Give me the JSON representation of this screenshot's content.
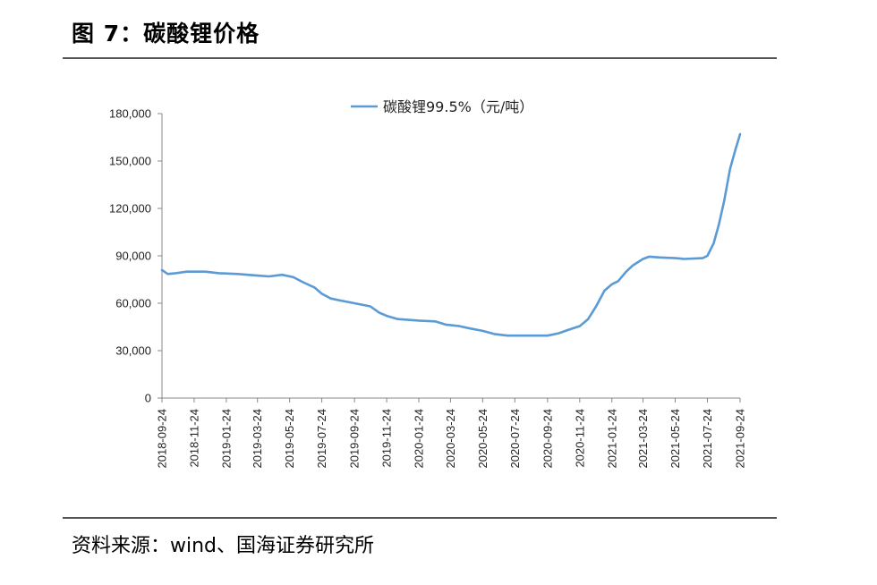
{
  "figure": {
    "title": "图 7：碳酸锂价格",
    "source": "资料来源：wind、国海证券研究所"
  },
  "colors": {
    "line": "#5b9bd5",
    "axis": "#888888",
    "rule": "#555555"
  },
  "chart_data": {
    "type": "line",
    "title": "",
    "xlabel": "",
    "ylabel": "",
    "ylim": [
      0,
      180000
    ],
    "xlim": [
      "2018-09-24",
      "2021-09-24"
    ],
    "yticks": [
      "0",
      "30,000",
      "60,000",
      "90,000",
      "120,000",
      "150,000",
      "180,000"
    ],
    "xticks": [
      "2018-09-24",
      "2018-11-24",
      "2019-01-24",
      "2019-03-24",
      "2019-05-24",
      "2019-07-24",
      "2019-09-24",
      "2019-11-24",
      "2020-01-24",
      "2020-03-24",
      "2020-05-24",
      "2020-07-24",
      "2020-09-24",
      "2020-11-24",
      "2021-01-24",
      "2021-03-24",
      "2021-05-24",
      "2021-07-24",
      "2021-09-24"
    ],
    "grid": false,
    "legend": "top-center",
    "series": [
      {
        "name": "碳酸锂99.5%（元/吨）",
        "points": [
          [
            "2018-09-24",
            81000
          ],
          [
            "2018-10-05",
            78500
          ],
          [
            "2018-10-20",
            79000
          ],
          [
            "2018-11-10",
            80000
          ],
          [
            "2018-12-15",
            80000
          ],
          [
            "2019-01-10",
            79000
          ],
          [
            "2019-02-15",
            78500
          ],
          [
            "2019-03-24",
            77500
          ],
          [
            "2019-04-15",
            77000
          ],
          [
            "2019-05-10",
            78000
          ],
          [
            "2019-05-31",
            76500
          ],
          [
            "2019-06-20",
            73000
          ],
          [
            "2019-07-10",
            70000
          ],
          [
            "2019-07-24",
            66000
          ],
          [
            "2019-08-10",
            63000
          ],
          [
            "2019-09-01",
            61500
          ],
          [
            "2019-09-24",
            60000
          ],
          [
            "2019-10-24",
            58000
          ],
          [
            "2019-11-10",
            54000
          ],
          [
            "2019-11-24",
            52000
          ],
          [
            "2019-12-15",
            50000
          ],
          [
            "2020-01-24",
            49000
          ],
          [
            "2020-02-24",
            48500
          ],
          [
            "2020-03-15",
            46500
          ],
          [
            "2020-04-10",
            45500
          ],
          [
            "2020-05-01",
            44000
          ],
          [
            "2020-05-24",
            42500
          ],
          [
            "2020-06-15",
            40500
          ],
          [
            "2020-07-10",
            39500
          ],
          [
            "2020-08-24",
            39500
          ],
          [
            "2020-09-24",
            39500
          ],
          [
            "2020-10-15",
            41000
          ],
          [
            "2020-11-01",
            43000
          ],
          [
            "2020-11-24",
            45500
          ],
          [
            "2020-12-10",
            50000
          ],
          [
            "2020-12-25",
            58000
          ],
          [
            "2021-01-10",
            68000
          ],
          [
            "2021-01-24",
            72000
          ],
          [
            "2021-02-05",
            74000
          ],
          [
            "2021-02-20",
            80000
          ],
          [
            "2021-03-05",
            84000
          ],
          [
            "2021-03-24",
            88000
          ],
          [
            "2021-04-05",
            89500
          ],
          [
            "2021-04-24",
            89000
          ],
          [
            "2021-05-24",
            88500
          ],
          [
            "2021-06-10",
            88000
          ],
          [
            "2021-07-15",
            88500
          ],
          [
            "2021-07-24",
            90000
          ],
          [
            "2021-08-05",
            98000
          ],
          [
            "2021-08-15",
            110000
          ],
          [
            "2021-08-25",
            125000
          ],
          [
            "2021-09-05",
            145000
          ],
          [
            "2021-09-15",
            157000
          ],
          [
            "2021-09-24",
            167000
          ]
        ]
      }
    ]
  }
}
